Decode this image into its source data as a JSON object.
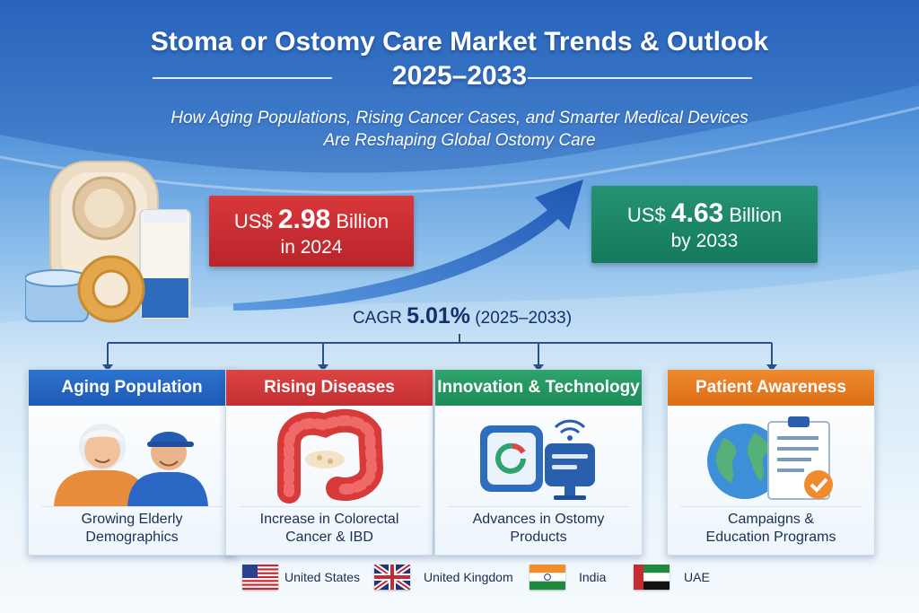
{
  "header": {
    "title_line1": "Stoma or Ostomy Care Market Trends & Outlook",
    "title_line2": "2025–2033",
    "subtitle_line1": "How Aging Populations, Rising Cancer Cases, and Smarter Medical Devices",
    "subtitle_line2": "Are Reshaping Global Ostomy Care"
  },
  "stats": {
    "start": {
      "currency": "US$",
      "value": "2.98",
      "unit": "Billion",
      "year": "in 2024"
    },
    "end": {
      "currency": "US$",
      "value": "4.63",
      "unit": "Billion",
      "year": "by 2033"
    },
    "cagr_label": "CAGR",
    "cagr_value": "5.01%",
    "cagr_period": "(2025–2033)"
  },
  "drivers": [
    {
      "title": "Aging Population",
      "caption_line1": "Growing Elderly",
      "caption_line2": "Demographics",
      "icon": "elderly-couple-icon"
    },
    {
      "title": "Rising Diseases",
      "caption_line1": "Increase in Colorectal",
      "caption_line2": "Cancer & IBD",
      "icon": "colon-icon"
    },
    {
      "title": "Innovation & Technology",
      "caption_line1": "Advances in Ostomy",
      "caption_line2": "Products",
      "icon": "smart-device-icon"
    },
    {
      "title": "Patient Awareness",
      "caption_line1": "Campaigns &",
      "caption_line2": "Education Programs",
      "icon": "globe-checklist-icon"
    }
  ],
  "regions": [
    {
      "name": "United States",
      "icon": "us-flag-icon"
    },
    {
      "name": "United Kingdom",
      "icon": "uk-flag-icon"
    },
    {
      "name": "India",
      "icon": "india-flag-icon"
    },
    {
      "name": "UAE",
      "icon": "uae-flag-icon"
    }
  ],
  "colors": {
    "red": "#c42f31",
    "green": "#1c8b58",
    "blue": "#1e5ab7",
    "orange": "#dc6e16",
    "navy": "#13306b"
  }
}
